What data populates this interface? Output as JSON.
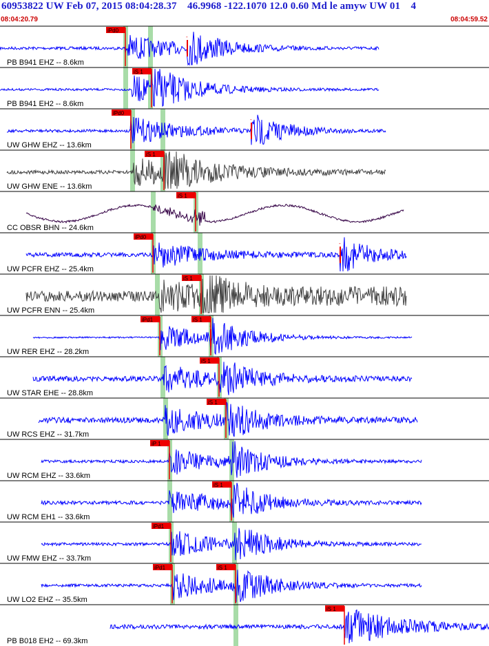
{
  "header": {
    "title": "60953822 UW Feb 07, 2015 08:04:28.37    46.9968 -122.1070 12.0 0.60 Md le amyw UW 01    4",
    "start_time": "08:04:20.79",
    "end_time": "08:04:59.52"
  },
  "colors": {
    "trace_blue": "#0000ff",
    "trace_gray": "#404040",
    "trace_purple": "#330044",
    "pick_red": "#ee0000",
    "window_green": "#a8dca8",
    "header_blue": "#1a1acc"
  },
  "chart_data": {
    "type": "line",
    "title": "60953822 UW Feb 07, 2015 08:04:28.37",
    "x_unit": "time",
    "x_range": [
      "08:04:20.79",
      "08:04:59.52"
    ],
    "traces": [
      {
        "label": "PB B941 EHZ -- 8.6km",
        "color": "blue",
        "pick": "iPd0",
        "pick_type": "P",
        "extra_pick": "-"
      },
      {
        "label": "PB B941 EH2 -- 8.6km",
        "color": "blue",
        "pick": "iS 1",
        "pick_type": "S"
      },
      {
        "label": "UW GHW EHZ -- 13.6km",
        "color": "blue",
        "pick": "iPd0",
        "pick_type": "P",
        "extra_pick": "-"
      },
      {
        "label": "UW GHW ENE -- 13.6km",
        "color": "gray",
        "pick": "iS 1",
        "pick_type": "S"
      },
      {
        "label": "CC OBSR BHN -- 24.6km",
        "color": "purple",
        "pick": "iS 1",
        "pick_type": "S"
      },
      {
        "label": "UW PCFR EHZ -- 25.4km",
        "color": "blue",
        "pick": "iPd0",
        "pick_type": "P",
        "extra_pick": "-"
      },
      {
        "label": "UW PCFR ENN -- 25.4km",
        "color": "gray",
        "pick": "iS 1",
        "pick_type": "S"
      },
      {
        "label": "UW RER EHZ -- 28.2km",
        "color": "blue",
        "pick": "iPd1",
        "pick_type": "P",
        "pick2": "iS 1",
        "extra_pick": "-"
      },
      {
        "label": "UW STAR EHE -- 28.8km",
        "color": "blue",
        "pick": "iS 1",
        "pick_type": "S"
      },
      {
        "label": "UW RCS EHZ -- 31.7km",
        "color": "blue",
        "pick": "iS 1",
        "pick_type": "S"
      },
      {
        "label": "UW RCM EHZ -- 33.6km",
        "color": "blue",
        "pick": "iP 1",
        "pick_type": "P"
      },
      {
        "label": "UW RCM EH1 -- 33.6km",
        "color": "blue",
        "pick": "iS 1",
        "pick_type": "S"
      },
      {
        "label": "UW FMW EHZ -- 33.7km",
        "color": "blue",
        "pick": "iPd1",
        "pick_type": "P"
      },
      {
        "label": "UW LO2 EHZ -- 35.5km",
        "color": "blue",
        "pick": "iPd1",
        "pick_type": "P",
        "pick2": "iS 1"
      },
      {
        "label": "PB B018 EH2 -- 69.3km",
        "color": "blue",
        "pick": "iS 1",
        "pick_type": "S"
      }
    ]
  }
}
